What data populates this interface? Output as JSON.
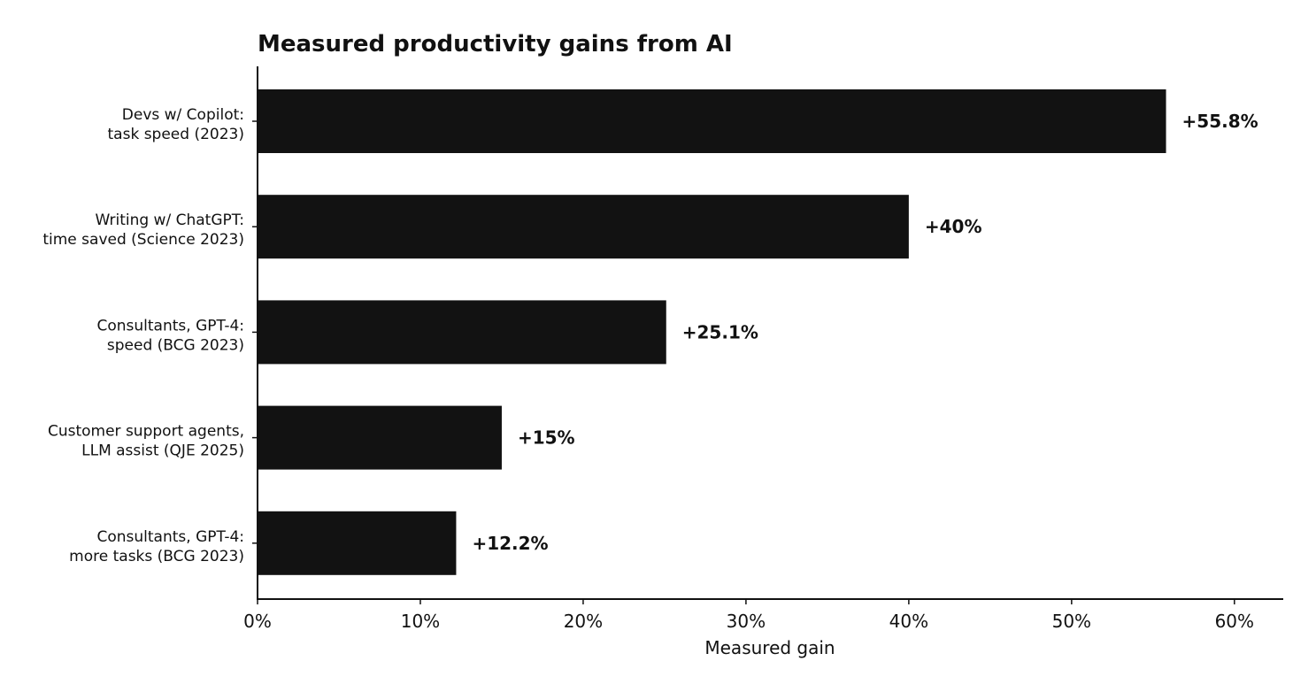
{
  "chart_data": {
    "type": "bar",
    "orientation": "horizontal",
    "title": "Measured productivity gains from AI",
    "xlabel": "Measured gain",
    "ylabel": "",
    "xlim": [
      0,
      63
    ],
    "xticks": [
      0,
      10,
      20,
      30,
      40,
      50,
      60
    ],
    "xtick_labels": [
      "0%",
      "10%",
      "20%",
      "30%",
      "40%",
      "50%",
      "60%"
    ],
    "categories": [
      [
        "Devs w/ Copilot:",
        "task speed (2023)"
      ],
      [
        "Writing w/ ChatGPT:",
        "time saved (Science 2023)"
      ],
      [
        "Consultants, GPT-4:",
        "speed (BCG 2023)"
      ],
      [
        "Customer support agents,",
        "LLM assist (QJE 2025)"
      ],
      [
        "Consultants, GPT-4:",
        "more tasks (BCG 2023)"
      ]
    ],
    "values": [
      55.8,
      40,
      25.1,
      15,
      12.2
    ],
    "data_labels": [
      "+55.8%",
      "+40%",
      "+25.1%",
      "+15%",
      "+12.2%"
    ],
    "bar_color": "#121212",
    "grid": false,
    "legend": "none"
  }
}
